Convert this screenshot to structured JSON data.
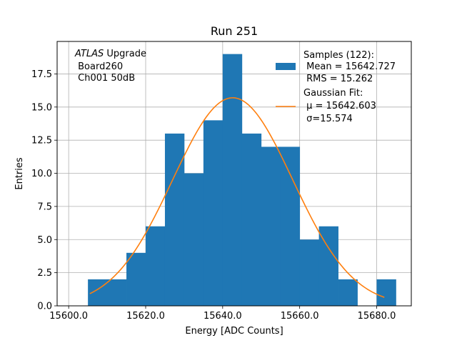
{
  "chart_data": {
    "type": "bar",
    "title": "Run 251",
    "xlabel": "Energy [ADC Counts]",
    "ylabel": "Entries",
    "xlim": [
      15597.0,
      15689.0
    ],
    "ylim": [
      0,
      19.95
    ],
    "grid": true,
    "legend_position": "top-right",
    "annotation": {
      "italic": "ATLAS",
      "rest": " Upgrade",
      "line2": " Board260",
      "line3": " Ch001 50dB"
    },
    "x_ticks": [
      15600,
      15620,
      15640,
      15660,
      15680
    ],
    "x_tick_labels": [
      "15600.0",
      "15620.0",
      "15640.0",
      "15660.0",
      "15680.0"
    ],
    "y_ticks": [
      0,
      2.5,
      5,
      7.5,
      10,
      12.5,
      15,
      17.5
    ],
    "y_tick_labels": [
      "0.0",
      "2.5",
      "5.0",
      "7.5",
      "10.0",
      "12.5",
      "15.0",
      "17.5"
    ],
    "histogram": {
      "name_lines": [
        "Samples (122):",
        " Mean = 15642.727",
        " RMS = 15.262"
      ],
      "color": "#1f77b4",
      "bin_edges": [
        15605,
        15610,
        15615,
        15620,
        15625,
        15630,
        15635,
        15640,
        15645,
        15650,
        15655,
        15660,
        15665,
        15670,
        15675,
        15680,
        15685
      ],
      "counts": [
        2,
        2,
        4,
        6,
        13,
        10,
        14,
        19,
        13,
        12,
        12,
        5,
        6,
        2,
        0,
        2
      ]
    },
    "fit": {
      "name_lines": [
        "Gaussian Fit:",
        " μ = 15642.603",
        " σ=15.574"
      ],
      "color": "#ff7f0e",
      "amplitude": 15.7,
      "mu": 15642.603,
      "sigma": 15.574,
      "x_range": [
        15605.5,
        15682.0
      ]
    }
  }
}
